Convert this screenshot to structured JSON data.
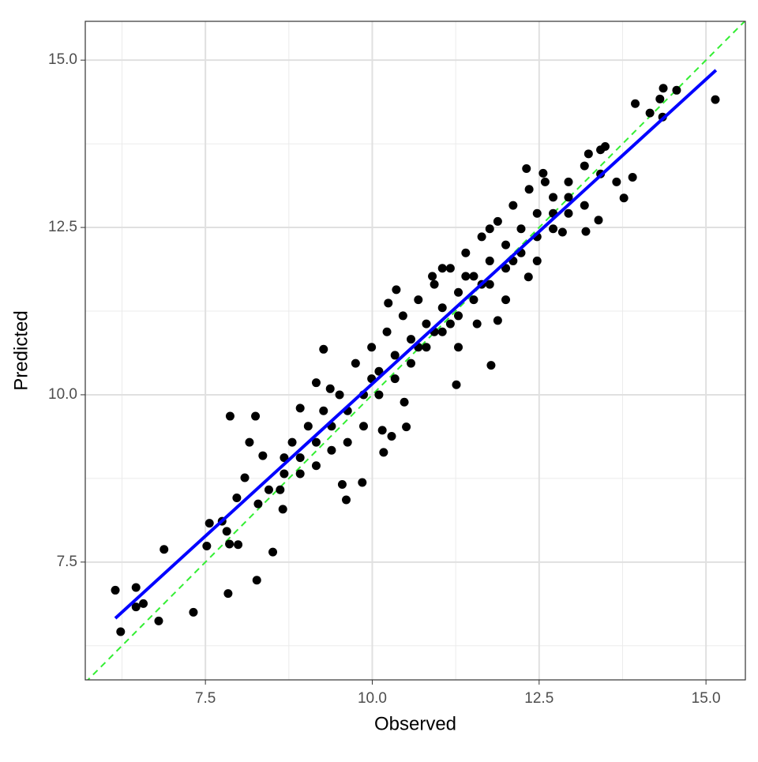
{
  "chart_data": {
    "type": "scatter",
    "x_label": "Observed",
    "y_label": "Predicted",
    "xlim": [
      5.7,
      15.59
    ],
    "ylim": [
      5.74,
      15.58
    ],
    "xticks": [
      {
        "value": 7.5,
        "label": "7.5"
      },
      {
        "value": 10,
        "label": "10.0"
      },
      {
        "value": 12.5,
        "label": "12.5"
      },
      {
        "value": 15,
        "label": "15.0"
      }
    ],
    "yticks": [
      {
        "value": 7.5,
        "label": "7.5"
      },
      {
        "value": 10,
        "label": "10.0"
      },
      {
        "value": 12.5,
        "label": "12.5"
      },
      {
        "value": 15,
        "label": "15.0"
      }
    ],
    "x_minor_grid": [
      6.25,
      8.75,
      11.25,
      13.75
    ],
    "y_minor_grid": [
      6.25,
      8.75,
      11.25,
      13.75
    ],
    "grid": true,
    "point_color": "#000000",
    "fit_line": {
      "color": "#0000ff",
      "x": [
        6.15,
        15.15
      ],
      "y": [
        6.66,
        14.85
      ]
    },
    "reference_line": {
      "color": "#33ee33",
      "dashed": true,
      "x": [
        5.7,
        15.59
      ],
      "y": [
        5.7,
        15.59
      ]
    },
    "x": [
      6.15,
      6.23,
      6.46,
      6.46,
      6.57,
      6.8,
      6.88,
      7.32,
      7.52,
      7.56,
      7.75,
      7.84,
      7.87,
      7.86,
      7.99,
      7.97,
      7.82,
      8.25,
      8.27,
      8.51,
      8.29,
      8.09,
      8.16,
      8.36,
      8.62,
      8.66,
      8.92,
      9.27,
      9.16,
      9.37,
      9.55,
      9.61,
      9.85,
      10.15,
      10.17,
      10.29,
      10.24,
      10.36,
      10.51,
      10.48,
      10.9,
      11.26,
      11.78,
      12.31,
      12.56,
      13.94,
      14.36,
      15.14,
      14.56,
      14.16,
      14.31,
      14.35,
      13.9,
      13.77,
      13.49,
      13.24,
      13.39,
      13.2,
      12.85,
      12.34,
      11.88,
      11.57,
      11.29,
      9.63,
      9.87,
      9.99,
      10.1,
      10.34,
      10.58,
      10.81,
      11.05,
      11.29,
      11.52,
      11.76,
      12.0,
      12.23,
      12.47,
      12.71,
      12.94,
      13.18,
      13.42,
      9.39,
      9.16,
      8.92,
      8.68,
      8.45,
      9.75,
      9.99,
      10.22,
      10.46,
      10.69,
      10.93,
      11.17,
      11.4,
      11.64,
      11.88,
      12.11,
      12.35,
      12.59,
      10.1,
      10.34,
      10.58,
      10.81,
      11.05,
      11.29,
      11.52,
      11.76,
      12.0,
      12.23,
      12.47,
      12.71,
      12.94,
      13.18,
      9.39,
      9.16,
      8.92,
      9.63,
      9.87,
      9.51,
      9.27,
      9.04,
      8.8,
      8.68,
      10.93,
      11.17,
      10.69,
      11.64,
      12.11,
      12.71,
      11.76,
      11.4,
      11.05,
      12.0,
      12.47,
      12.94,
      13.42,
      13.66
    ],
    "values": [
      7.08,
      6.46,
      7.12,
      6.83,
      6.88,
      6.62,
      7.69,
      6.75,
      7.74,
      8.08,
      8.11,
      7.03,
      9.68,
      7.77,
      7.76,
      8.46,
      7.96,
      9.68,
      7.23,
      7.65,
      8.37,
      8.76,
      9.29,
      9.09,
      8.58,
      8.29,
      9.8,
      10.68,
      10.18,
      10.09,
      8.66,
      8.43,
      8.69,
      9.47,
      9.14,
      9.38,
      11.37,
      11.57,
      9.52,
      9.89,
      11.77,
      10.15,
      10.44,
      13.38,
      13.31,
      14.35,
      14.58,
      14.41,
      14.55,
      14.21,
      14.42,
      14.15,
      13.25,
      12.94,
      13.71,
      13.6,
      12.61,
      12.44,
      12.43,
      11.76,
      11.11,
      11.06,
      10.71,
      9.76,
      10.0,
      10.24,
      10.35,
      10.59,
      10.83,
      11.06,
      11.3,
      11.53,
      11.77,
      12.0,
      12.24,
      12.48,
      12.71,
      12.95,
      13.18,
      13.42,
      13.66,
      9.53,
      9.29,
      9.06,
      8.82,
      8.58,
      10.47,
      10.71,
      10.94,
      11.18,
      11.42,
      11.65,
      11.89,
      12.12,
      12.36,
      12.59,
      12.83,
      13.07,
      13.18,
      10.0,
      10.24,
      10.47,
      10.71,
      10.94,
      11.18,
      11.42,
      11.65,
      11.89,
      12.12,
      12.36,
      12.48,
      12.71,
      12.83,
      9.17,
      8.94,
      8.82,
      9.29,
      9.53,
      10.0,
      9.76,
      9.53,
      9.29,
      9.06,
      10.94,
      11.06,
      10.71,
      11.65,
      12.0,
      12.71,
      12.48,
      11.77,
      11.89,
      11.42,
      12.0,
      12.95,
      13.3,
      13.18
    ]
  }
}
